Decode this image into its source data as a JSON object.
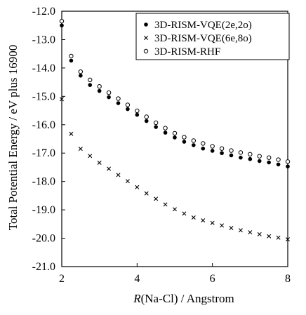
{
  "chart_data": {
    "type": "scatter",
    "title": "",
    "xlabel_italic": "R",
    "xlabel_rest": "(Na-Cl) / Angstrom",
    "ylabel": "Total Potential Energy / eV plus 16900",
    "xlim": [
      2,
      8
    ],
    "ylim": [
      -21.0,
      -12.0
    ],
    "xticks": [
      "2",
      "4",
      "6",
      "8"
    ],
    "yticks": [
      "-12.0",
      "-13.0",
      "-14.0",
      "-15.0",
      "-16.0",
      "-17.0",
      "-18.0",
      "-19.0",
      "-20.0",
      "-21.0"
    ],
    "grid": false,
    "legend_position": "top-right",
    "x": [
      2.0,
      2.25,
      2.5,
      2.75,
      3.0,
      3.25,
      3.5,
      3.75,
      4.0,
      4.25,
      4.5,
      4.75,
      5.0,
      5.25,
      5.5,
      5.75,
      6.0,
      6.25,
      6.5,
      6.75,
      7.0,
      7.25,
      7.5,
      7.75,
      8.0
    ],
    "series": [
      {
        "name": "3D-RISM-VQE(2e,2o)",
        "marker": "filled-circle",
        "values": [
          -12.5,
          -13.74,
          -14.27,
          -14.6,
          -14.81,
          -15.03,
          -15.24,
          -15.45,
          -15.65,
          -15.87,
          -16.08,
          -16.28,
          -16.45,
          -16.6,
          -16.72,
          -16.84,
          -16.92,
          -17.0,
          -17.08,
          -17.16,
          -17.21,
          -17.28,
          -17.33,
          -17.4,
          -17.47
        ]
      },
      {
        "name": "3D-RISM-VQE(6e,8o)",
        "marker": "x",
        "values": [
          -15.1,
          -16.32,
          -16.85,
          -17.1,
          -17.34,
          -17.55,
          -17.77,
          -17.99,
          -18.2,
          -18.42,
          -18.61,
          -18.81,
          -18.98,
          -19.13,
          -19.27,
          -19.37,
          -19.46,
          -19.55,
          -19.64,
          -19.72,
          -19.79,
          -19.86,
          -19.93,
          -19.98,
          -20.04
        ]
      },
      {
        "name": "3D-RISM-RHF",
        "marker": "open-circle",
        "values": [
          -12.35,
          -13.58,
          -14.13,
          -14.42,
          -14.65,
          -14.87,
          -15.08,
          -15.3,
          -15.51,
          -15.72,
          -15.93,
          -16.12,
          -16.3,
          -16.44,
          -16.56,
          -16.66,
          -16.76,
          -16.84,
          -16.91,
          -16.98,
          -17.04,
          -17.11,
          -17.16,
          -17.23,
          -17.3
        ]
      }
    ]
  }
}
